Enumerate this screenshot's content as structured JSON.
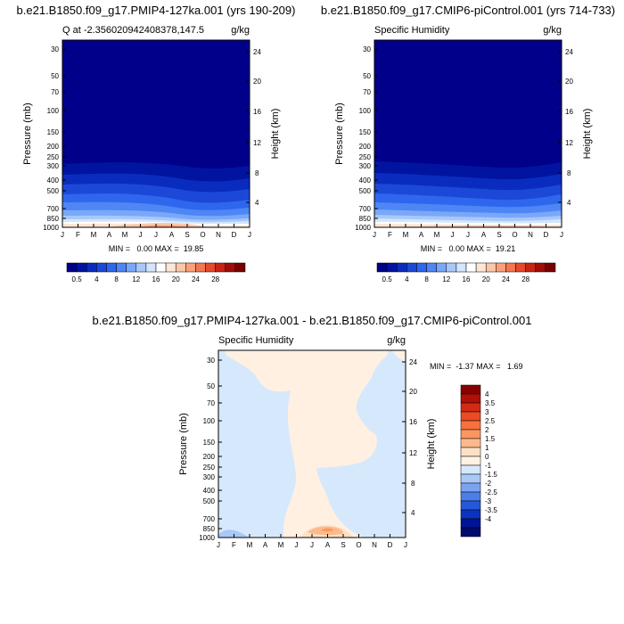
{
  "chart_data": [
    {
      "type": "heatmap",
      "main_title": "b.e21.B1850.f09_g17.PMIP4-127ka.001 (yrs 190-209)",
      "title_left": "Q at -2.356020942408378,147.5",
      "title_right": "g/kg",
      "ylabel": "Pressure (mb)",
      "ylabel_right": "Height (km)",
      "months": [
        "J",
        "F",
        "M",
        "A",
        "M",
        "J",
        "J",
        "A",
        "S",
        "O",
        "N",
        "D",
        "J"
      ],
      "pressure_ticks": [
        "30",
        "50",
        "70",
        "100",
        "150",
        "200",
        "250",
        "300",
        "400",
        "500",
        "700",
        "850",
        "1000"
      ],
      "height_ticks": [
        "24",
        "20",
        "16",
        "12",
        "8",
        "4"
      ],
      "min_max": "MIN =   0.00 MAX =  19.85",
      "colorbar_labels": [
        "0.5",
        "4",
        "8",
        "12",
        "16",
        "20",
        "24",
        "28"
      ],
      "colorbar_colors": [
        "#00008a",
        "#0014a0",
        "#0a2cbe",
        "#1c48d8",
        "#2f66ee",
        "#4e86f6",
        "#7aa8f8",
        "#a8c8fa",
        "#d4e6fc",
        "#ffffff",
        "#fde6d4",
        "#fcc6a8",
        "#f9a07a",
        "#f3764f",
        "#e64a2c",
        "#c82414",
        "#a00c08",
        "#7a0000"
      ]
    },
    {
      "type": "heatmap",
      "main_title": "b.e21.B1850.f09_g17.CMIP6-piControl.001 (yrs 714-733)",
      "title_left": "Specific Humidity",
      "title_right": "g/kg",
      "ylabel": "Pressure (mb)",
      "ylabel_right": "Height (km)",
      "months": [
        "J",
        "F",
        "M",
        "A",
        "M",
        "J",
        "J",
        "A",
        "S",
        "O",
        "N",
        "D",
        "J"
      ],
      "pressure_ticks": [
        "30",
        "50",
        "70",
        "100",
        "150",
        "200",
        "250",
        "300",
        "400",
        "500",
        "700",
        "850",
        "1000"
      ],
      "height_ticks": [
        "24",
        "20",
        "16",
        "12",
        "8",
        "4"
      ],
      "min_max": "MIN =   0.00 MAX =  19.21",
      "colorbar_labels": [
        "0.5",
        "4",
        "8",
        "12",
        "16",
        "20",
        "24",
        "28"
      ],
      "colorbar_colors": [
        "#00008a",
        "#0014a0",
        "#0a2cbe",
        "#1c48d8",
        "#2f66ee",
        "#4e86f6",
        "#7aa8f8",
        "#a8c8fa",
        "#d4e6fc",
        "#ffffff",
        "#fde6d4",
        "#fcc6a8",
        "#f9a07a",
        "#f3764f",
        "#e64a2c",
        "#c82414",
        "#a00c08",
        "#7a0000"
      ]
    },
    {
      "type": "heatmap",
      "main_title": "b.e21.B1850.f09_g17.PMIP4-127ka.001 - b.e21.B1850.f09_g17.CMIP6-piControl.001",
      "title_left": "Specific Humidity",
      "title_right": "g/kg",
      "ylabel": "Pressure (mb)",
      "ylabel_right": "Height (km)",
      "months": [
        "J",
        "F",
        "M",
        "A",
        "M",
        "J",
        "J",
        "A",
        "S",
        "O",
        "N",
        "D",
        "J"
      ],
      "pressure_ticks": [
        "30",
        "50",
        "70",
        "100",
        "150",
        "200",
        "250",
        "300",
        "400",
        "500",
        "700",
        "850",
        "1000"
      ],
      "height_ticks": [
        "24",
        "20",
        "16",
        "12",
        "8",
        "4"
      ],
      "min_max": "MIN =  -1.37 MAX =   1.69",
      "colorbar_labels": [
        "4",
        "3.5",
        "3",
        "2.5",
        "2",
        "1.5",
        "1",
        "0",
        "-1",
        "-1.5",
        "-2",
        "-2.5",
        "-3",
        "-3.5",
        "-4"
      ],
      "colorbar_colors": [
        "#8a0000",
        "#b01008",
        "#d22a14",
        "#ec4a24",
        "#f8703c",
        "#fb9660",
        "#fcba8c",
        "#fde0c6",
        "#fff2e4",
        "#d6e8fc",
        "#a8c8f8",
        "#7aa4f2",
        "#4c7ee8",
        "#2658da",
        "#0c32c0",
        "#001496",
        "#000a6e"
      ]
    }
  ]
}
